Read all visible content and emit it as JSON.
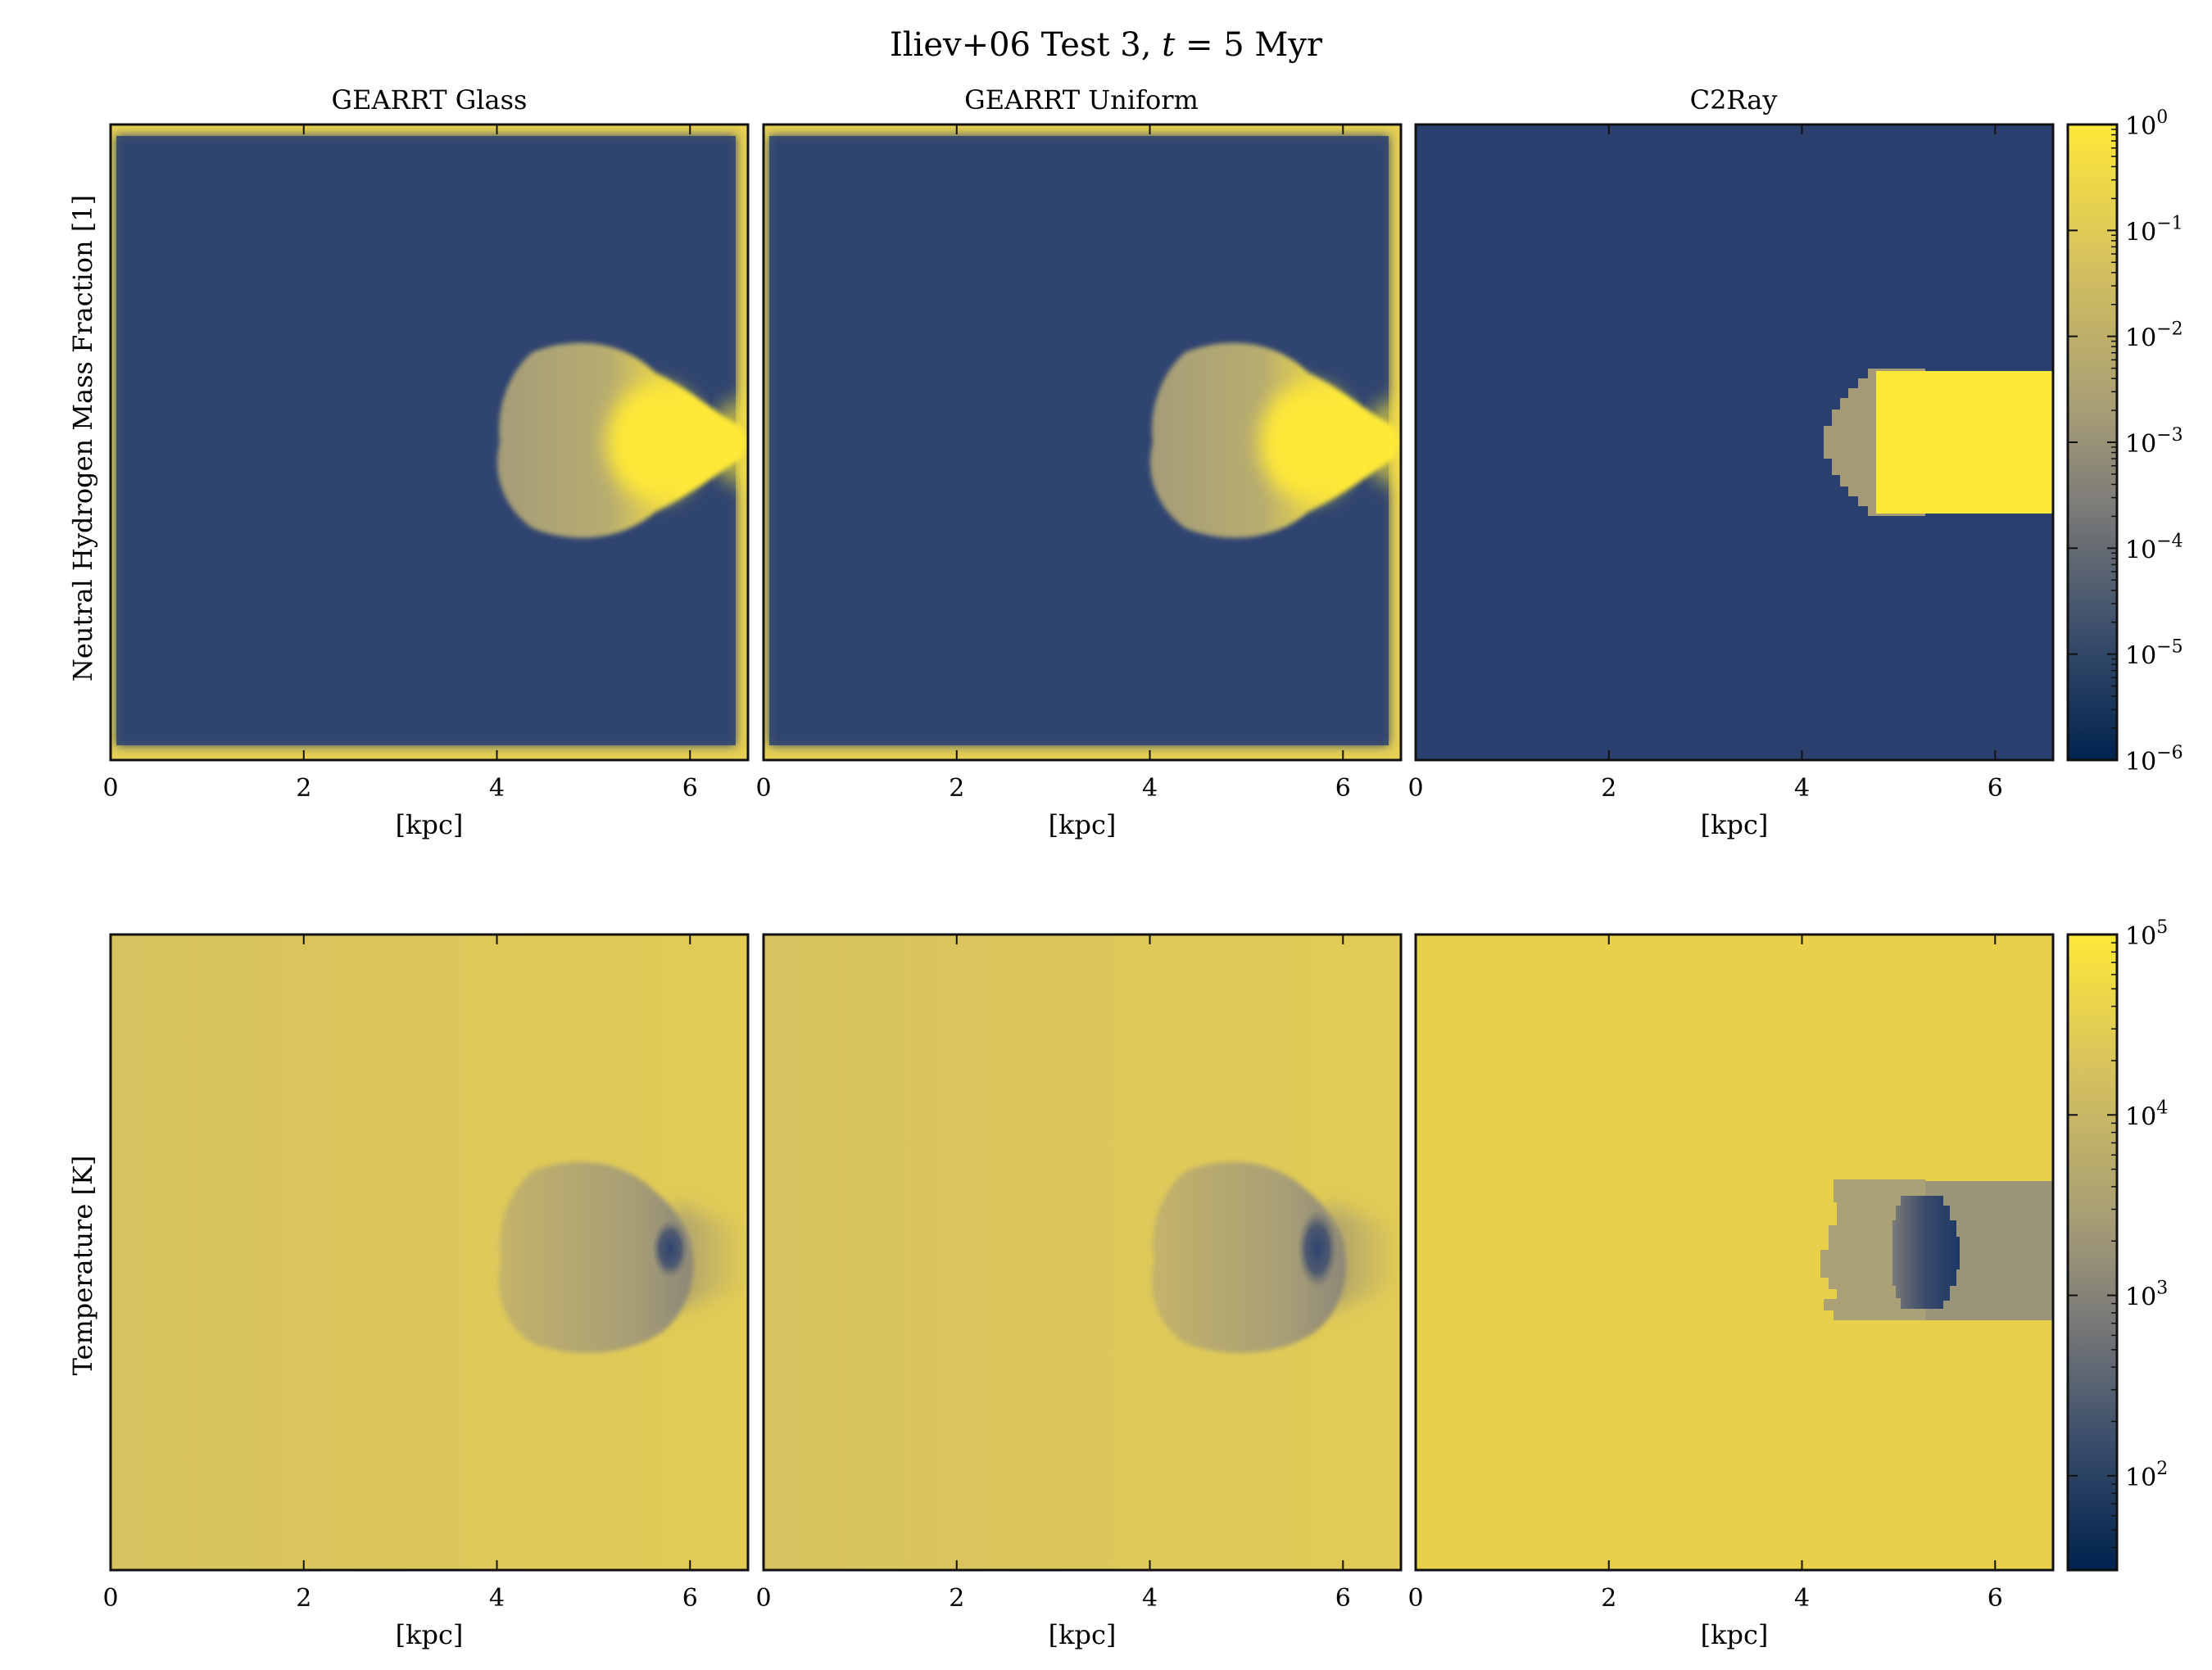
{
  "figure": {
    "title_prefix": "Iliev+06 Test 3, ",
    "title_var": "t",
    "title_suffix": " = 5 Myr"
  },
  "columns": [
    "GEARRT Glass",
    "GEARRT Uniform",
    "C2Ray"
  ],
  "colormap": "cividis",
  "colors": {
    "low": "#00224e",
    "mid": "#7c7b78",
    "high": "#fee838"
  },
  "chart_data": [
    {
      "type": "heatmap",
      "row": "top",
      "ylabel": "Neutral Hydrogen Mass Fraction [1]",
      "xlabel": "[kpc]",
      "xlim": [
        0,
        6.6
      ],
      "xticks": [
        0,
        2,
        4,
        6
      ],
      "colorbar": {
        "scale": "log",
        "range": [
          1e-06,
          1.0
        ],
        "tick_base": "10",
        "tick_exps": [
          "0",
          "−1",
          "−2",
          "−3",
          "−4",
          "−5",
          "−6"
        ]
      },
      "panels": [
        {
          "name": "GEARRT Glass",
          "background": 2e-05,
          "clump_center_x_kpc": 4.9,
          "clump_radius_kpc": 1.0,
          "clump_front": 0.003,
          "shadow": "diffuse"
        },
        {
          "name": "GEARRT Uniform",
          "background": 2e-05,
          "clump_center_x_kpc": 4.9,
          "clump_radius_kpc": 1.0,
          "clump_front": 0.003,
          "shadow": "diffuse"
        },
        {
          "name": "C2Ray",
          "background": 2e-05,
          "clump_center_x_kpc": 4.9,
          "clump_radius_kpc": 0.8,
          "clump_front": 0.003,
          "shadow": "sharp"
        }
      ]
    },
    {
      "type": "heatmap",
      "row": "bottom",
      "ylabel": "Temperature [K]",
      "xlabel": "[kpc]",
      "xlim": [
        0,
        6.6
      ],
      "xticks": [
        0,
        2,
        4,
        6
      ],
      "colorbar": {
        "scale": "log",
        "range": [
          30,
          100000
        ],
        "tick_base": "10",
        "tick_exps": [
          "5",
          "4",
          "3",
          "2"
        ]
      },
      "panels": [
        {
          "name": "GEARRT Glass",
          "background": 30000.0,
          "clump_temperature": 7000,
          "clump_core": 150
        },
        {
          "name": "GEARRT Uniform",
          "background": 30000.0,
          "clump_temperature": 7000,
          "clump_core": 150
        },
        {
          "name": "C2Ray",
          "background": 50000.0,
          "clump_temperature": 5000,
          "clump_core": 80
        }
      ]
    }
  ]
}
